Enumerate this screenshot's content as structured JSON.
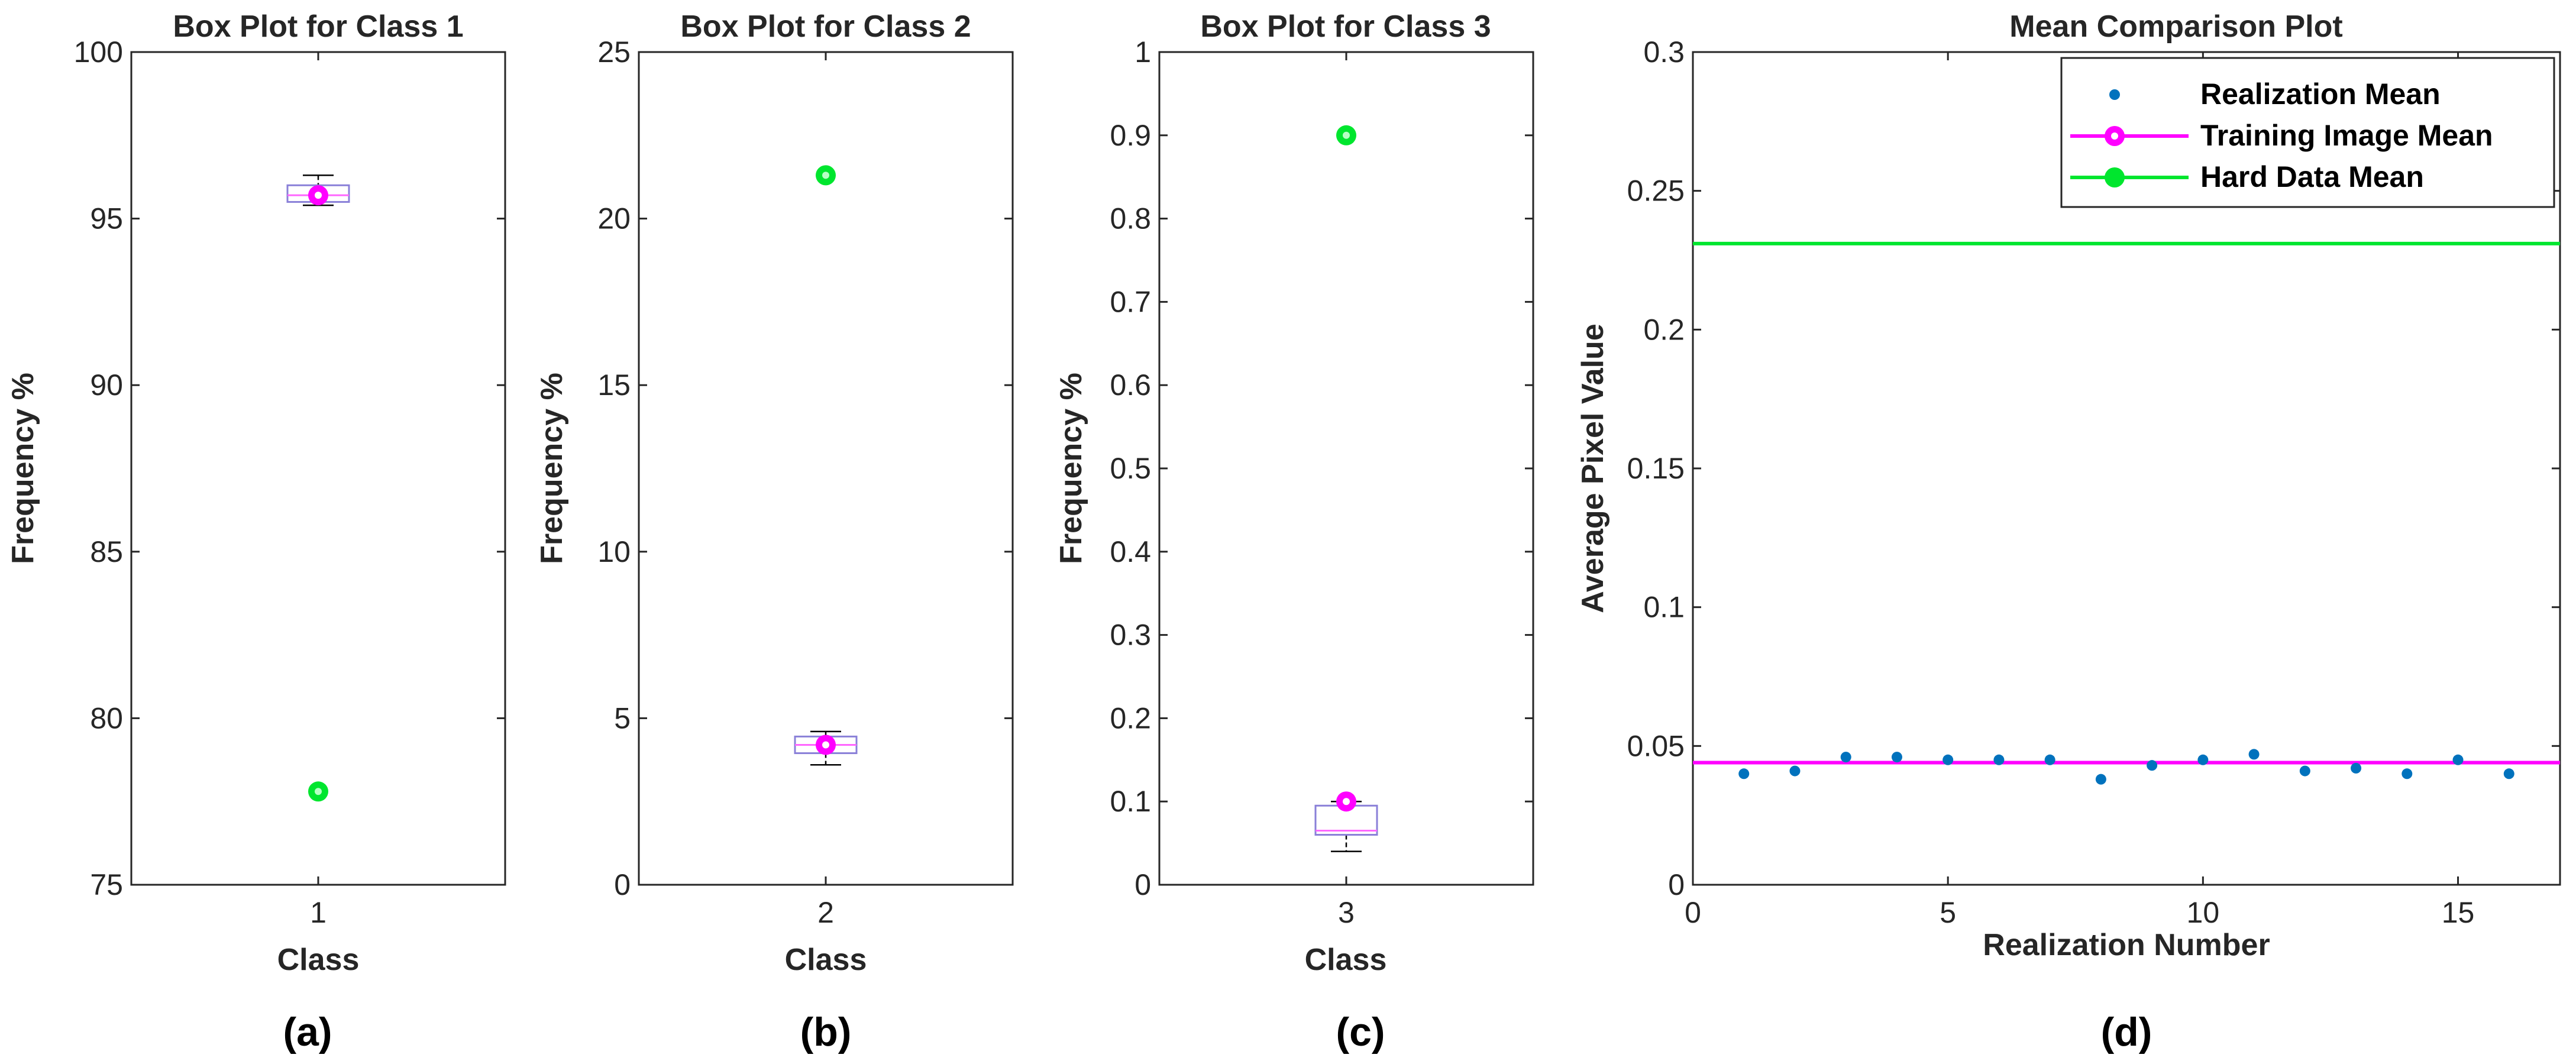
{
  "colors": {
    "green": "#00e62e",
    "magenta": "#ff00ff",
    "blue": "#0072bd",
    "box": "#8a80d8",
    "median": "#ff66ff",
    "axis": "#262626"
  },
  "chart_data": [
    {
      "type": "box",
      "panel_label": "(a)",
      "title": "Box Plot for Class 1",
      "xlabel": "Class",
      "ylabel": "Frequency %",
      "ylim": [
        75,
        100
      ],
      "yticks": [
        "75",
        "80",
        "85",
        "90",
        "95",
        "100"
      ],
      "ytick_values": [
        75,
        80,
        85,
        90,
        95,
        100
      ],
      "xtick": "1",
      "box": {
        "whisker_low": 95.4,
        "q1": 95.5,
        "median": 95.7,
        "q3": 96.0,
        "whisker_high": 96.3
      },
      "training_image_value": 95.7,
      "hard_data_value": 77.8
    },
    {
      "type": "box",
      "panel_label": "(b)",
      "title": "Box Plot for Class 2",
      "xlabel": "Class",
      "ylabel": "Frequency %",
      "ylim": [
        0,
        25
      ],
      "yticks": [
        "0",
        "5",
        "10",
        "15",
        "20",
        "25"
      ],
      "ytick_values": [
        0,
        5,
        10,
        15,
        20,
        25
      ],
      "xtick": "2",
      "box": {
        "whisker_low": 3.6,
        "q1": 3.95,
        "median": 4.2,
        "q3": 4.45,
        "whisker_high": 4.6
      },
      "training_image_value": 4.2,
      "hard_data_value": 21.3
    },
    {
      "type": "box",
      "panel_label": "(c)",
      "title": "Box Plot for Class 3",
      "xlabel": "Class",
      "ylabel": "Frequency %",
      "ylim": [
        0,
        1
      ],
      "yticks": [
        "0",
        "0.1",
        "0.2",
        "0.3",
        "0.4",
        "0.5",
        "0.6",
        "0.7",
        "0.8",
        "0.9",
        "1"
      ],
      "ytick_values": [
        0,
        0.1,
        0.2,
        0.3,
        0.4,
        0.5,
        0.6,
        0.7,
        0.8,
        0.9,
        1
      ],
      "xtick": "3",
      "box": {
        "whisker_low": 0.04,
        "q1": 0.06,
        "median": 0.065,
        "q3": 0.095,
        "whisker_high": 0.1
      },
      "training_image_value": 0.1,
      "hard_data_value": 0.9
    },
    {
      "type": "scatter",
      "panel_label": "(d)",
      "title": "Mean Comparison Plot",
      "xlabel": "Realization Number",
      "ylabel": "Average Pixel Value",
      "xlim": [
        0,
        17
      ],
      "ylim": [
        0,
        0.3
      ],
      "xticks": [
        "0",
        "5",
        "10",
        "15"
      ],
      "xtick_values": [
        0,
        5,
        10,
        15
      ],
      "yticks": [
        "0",
        "0.05",
        "0.1",
        "0.15",
        "0.2",
        "0.25",
        "0.3"
      ],
      "ytick_values": [
        0,
        0.05,
        0.1,
        0.15,
        0.2,
        0.25,
        0.3
      ],
      "x": [
        1,
        2,
        3,
        4,
        5,
        6,
        7,
        8,
        9,
        10,
        11,
        12,
        13,
        14,
        15,
        16
      ],
      "y": [
        0.04,
        0.041,
        0.046,
        0.046,
        0.045,
        0.045,
        0.045,
        0.038,
        0.043,
        0.045,
        0.047,
        0.041,
        0.042,
        0.04,
        0.045,
        0.04
      ],
      "training_image_mean": 0.044,
      "hard_data_mean": 0.231,
      "legend": [
        "Realization Mean",
        "Training Image Mean",
        "Hard Data Mean"
      ],
      "legend_position": "top-right"
    }
  ]
}
